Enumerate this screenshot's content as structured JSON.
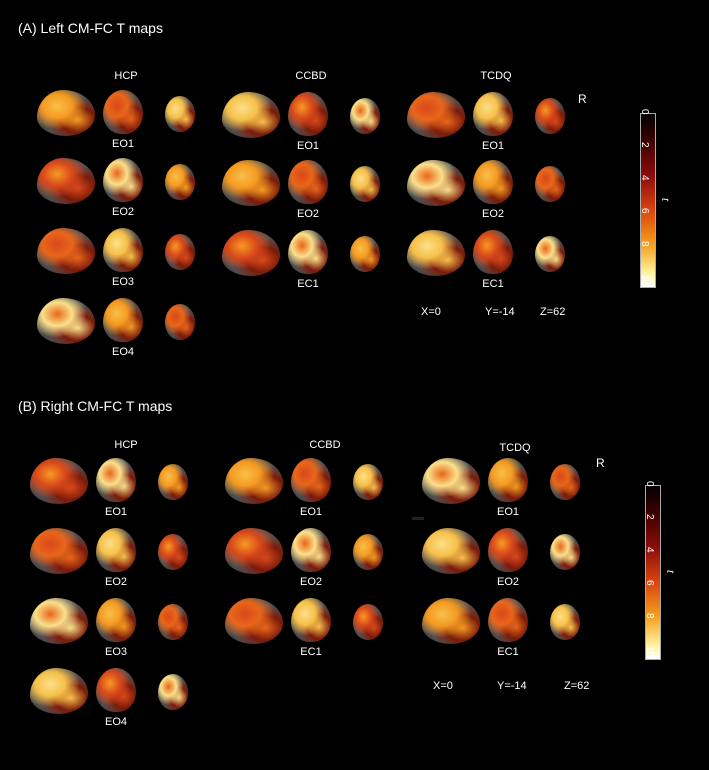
{
  "panelA": {
    "title": "(A) Left CM-FC T maps",
    "groups": [
      "HCP",
      "CCBD",
      "TCDQ"
    ],
    "hcp_labels": [
      "EO1",
      "EO2",
      "EO3",
      "EO4"
    ],
    "ccbd_labels": [
      "EO1",
      "EO2",
      "EC1"
    ],
    "tcdq_labels": [
      "EO1",
      "EO2",
      "EC1"
    ],
    "coords": [
      "X=0",
      "Y=-14",
      "Z=62"
    ],
    "r_mark": "R",
    "colorbar": {
      "ticks": [
        "0",
        "2",
        "4",
        "6",
        "8",
        "10"
      ],
      "label": "t"
    }
  },
  "panelB": {
    "title": "(B) Right CM-FC T maps",
    "groups": [
      "HCP",
      "CCBD",
      "TCDQ"
    ],
    "hcp_labels": [
      "EO1",
      "EO2",
      "EO3",
      "EO4"
    ],
    "ccbd_labels": [
      "EO1",
      "EO2",
      "EC1"
    ],
    "tcdq_labels": [
      "EO1",
      "EO2",
      "EC1"
    ],
    "coords": [
      "X=0",
      "Y=-14",
      "Z=62"
    ],
    "r_mark": "R",
    "colorbar": {
      "ticks": [
        "0",
        "2",
        "4",
        "6",
        "8",
        "10"
      ],
      "label": "t"
    }
  },
  "colors": {
    "background": "#000000",
    "colormap_low": "#3a0000",
    "colormap_mid": "#d8420f",
    "colormap_high": "#ffffff"
  }
}
